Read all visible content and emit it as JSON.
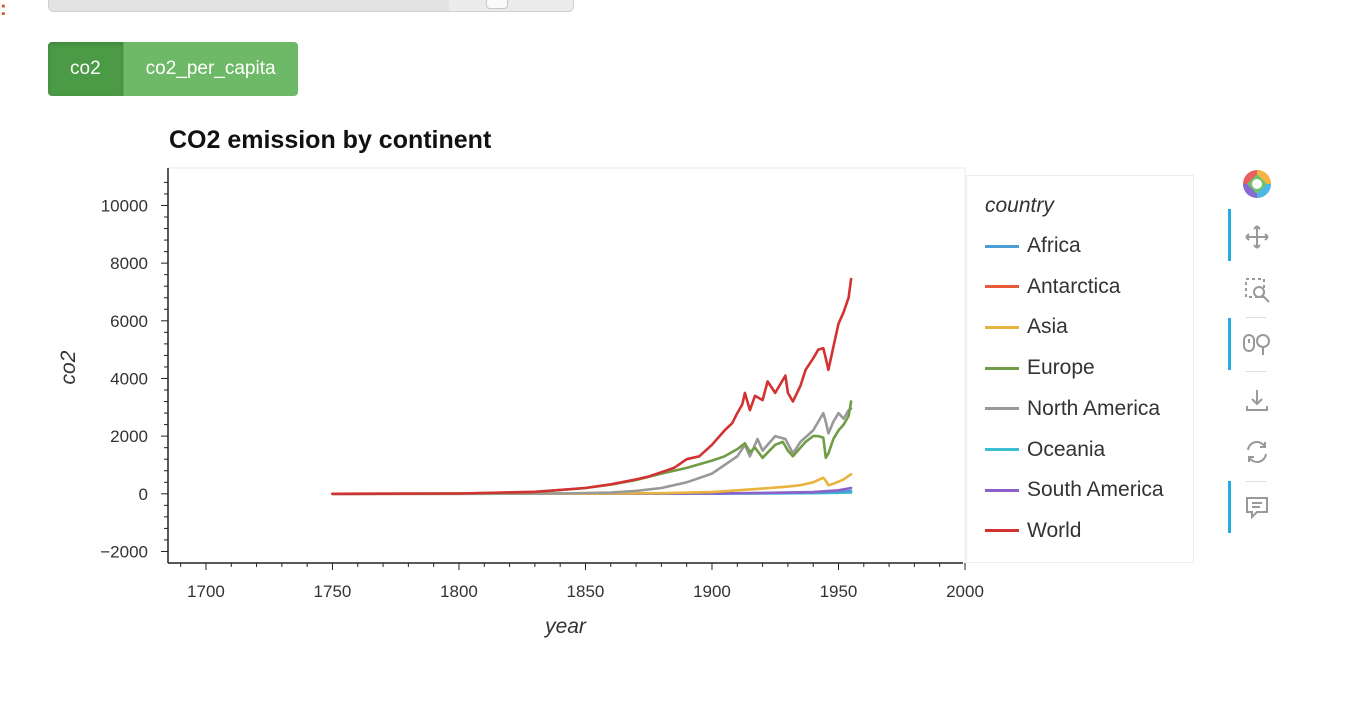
{
  "tabs": {
    "active_label": "co2",
    "inactive_label": "co2_per_capita"
  },
  "slider": {
    "value_fraction": 0.76
  },
  "legend": {
    "title": "country",
    "items": [
      {
        "label": "Africa",
        "color": "#4a9fd6"
      },
      {
        "label": "Antarctica",
        "color": "#e8593a"
      },
      {
        "label": "Asia",
        "color": "#e9b33f"
      },
      {
        "label": "Europe",
        "color": "#6f9c44"
      },
      {
        "label": "North America",
        "color": "#999999"
      },
      {
        "label": "Oceania",
        "color": "#3bbecf"
      },
      {
        "label": "South America",
        "color": "#8b62c9"
      },
      {
        "label": "World",
        "color": "#d33232"
      }
    ]
  },
  "toolbar": {
    "tools": [
      "bokeh-logo-icon",
      "pan-icon",
      "box-zoom-icon",
      "wheel-zoom-icon",
      "save-icon",
      "reset-icon",
      "hover-icon"
    ]
  },
  "chart_data": {
    "type": "line",
    "title": "CO2 emission by continent",
    "xlabel": "year",
    "ylabel": "co2",
    "xlim": [
      1685,
      2000
    ],
    "ylim": [
      -2400,
      11300
    ],
    "x_ticks": [
      1700,
      1750,
      1800,
      1850,
      1900,
      1950,
      2000
    ],
    "x_tick_labels": [
      "1700",
      "1750",
      "1800",
      "1850",
      "1900",
      "1950",
      "2000"
    ],
    "y_ticks": [
      -2000,
      0,
      2000,
      4000,
      6000,
      8000,
      10000
    ],
    "y_tick_labels": [
      "−2000",
      "0",
      "2000",
      "4000",
      "6000",
      "8000",
      "10000"
    ],
    "legend_position": "right",
    "grid": false,
    "series": [
      {
        "name": "World",
        "color": "#d33232",
        "x": [
          1750,
          1800,
          1830,
          1850,
          1860,
          1870,
          1875,
          1880,
          1885,
          1890,
          1895,
          1900,
          1905,
          1908,
          1910,
          1912,
          1913,
          1915,
          1917,
          1920,
          1922,
          1925,
          1929,
          1930,
          1932,
          1935,
          1937,
          1940,
          1942,
          1944,
          1945,
          1946,
          1948,
          1950,
          1952,
          1954,
          1955
        ],
        "y": [
          0,
          10,
          70,
          200,
          330,
          500,
          600,
          750,
          900,
          1200,
          1300,
          1700,
          2200,
          2450,
          2800,
          3100,
          3500,
          2900,
          3400,
          3250,
          3900,
          3500,
          4100,
          3500,
          3200,
          3750,
          4300,
          4700,
          5000,
          5050,
          4700,
          4300,
          5100,
          5900,
          6300,
          6800,
          7450
        ]
      },
      {
        "name": "North America",
        "color": "#999999",
        "x": [
          1750,
          1800,
          1840,
          1860,
          1870,
          1880,
          1890,
          1900,
          1905,
          1910,
          1913,
          1915,
          1918,
          1920,
          1925,
          1929,
          1932,
          1935,
          1940,
          1944,
          1945,
          1946,
          1948,
          1950,
          1952,
          1954,
          1955
        ],
        "y": [
          0,
          0,
          10,
          40,
          100,
          200,
          400,
          700,
          1000,
          1300,
          1700,
          1300,
          1900,
          1500,
          2000,
          1900,
          1400,
          1800,
          2200,
          2800,
          2500,
          2100,
          2500,
          2800,
          2600,
          2900,
          2950
        ]
      },
      {
        "name": "Europe",
        "color": "#6f9c44",
        "x": [
          1750,
          1800,
          1830,
          1850,
          1860,
          1870,
          1880,
          1890,
          1900,
          1905,
          1910,
          1913,
          1915,
          1917,
          1920,
          1925,
          1928,
          1930,
          1932,
          1935,
          1937,
          1940,
          1942,
          1944,
          1945,
          1946,
          1948,
          1950,
          1952,
          1954,
          1955
        ],
        "y": [
          0,
          10,
          60,
          200,
          320,
          480,
          700,
          900,
          1150,
          1300,
          1550,
          1750,
          1450,
          1600,
          1250,
          1700,
          1800,
          1500,
          1300,
          1600,
          1800,
          2000,
          2000,
          1950,
          1250,
          1400,
          1900,
          2200,
          2400,
          2700,
          3200
        ]
      },
      {
        "name": "Asia",
        "color": "#e9b33f",
        "x": [
          1750,
          1850,
          1880,
          1900,
          1910,
          1920,
          1930,
          1935,
          1940,
          1944,
          1945,
          1946,
          1948,
          1950,
          1952,
          1955
        ],
        "y": [
          0,
          5,
          20,
          60,
          120,
          180,
          250,
          300,
          400,
          560,
          450,
          300,
          350,
          420,
          500,
          680
        ]
      },
      {
        "name": "South America",
        "color": "#8b62c9",
        "x": [
          1750,
          1900,
          1920,
          1940,
          1950,
          1955
        ],
        "y": [
          0,
          10,
          30,
          60,
          120,
          200
        ]
      },
      {
        "name": "Africa",
        "color": "#4a9fd6",
        "x": [
          1750,
          1900,
          1920,
          1940,
          1950,
          1955
        ],
        "y": [
          0,
          10,
          20,
          40,
          70,
          100
        ]
      },
      {
        "name": "Oceania",
        "color": "#3bbecf",
        "x": [
          1750,
          1900,
          1940,
          1955
        ],
        "y": [
          0,
          5,
          20,
          40
        ]
      }
    ]
  }
}
